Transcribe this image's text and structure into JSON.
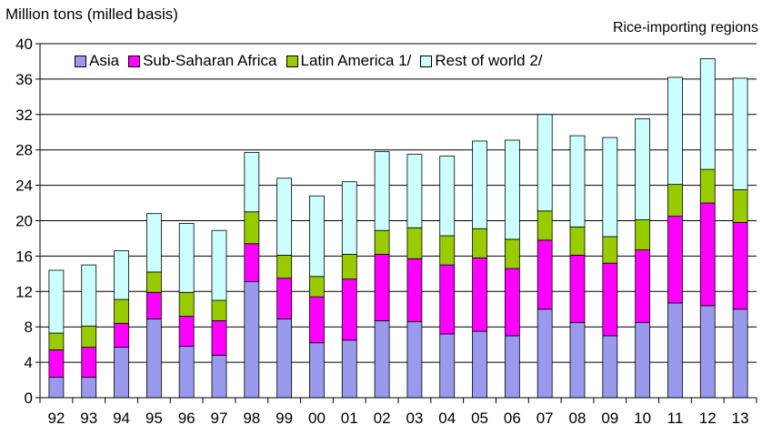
{
  "chart_data": {
    "type": "bar",
    "stacked": true,
    "title": "",
    "subtitle": "Rice-importing regions",
    "ylabel": "Million tons (milled basis)",
    "xlabel": "",
    "ylim": [
      0,
      40
    ],
    "yticks": [
      0,
      4,
      8,
      12,
      16,
      20,
      24,
      28,
      32,
      36,
      40
    ],
    "grid": true,
    "legend_position": "top-left",
    "categories": [
      "92",
      "93",
      "94",
      "95",
      "96",
      "97",
      "98",
      "99",
      "00",
      "01",
      "02",
      "03",
      "04",
      "05",
      "06",
      "07",
      "08",
      "09",
      "10",
      "11",
      "12",
      "13"
    ],
    "series": [
      {
        "name": "Asia",
        "color": "#9999ee",
        "values": [
          2.3,
          2.3,
          5.7,
          8.9,
          5.8,
          4.8,
          13.1,
          8.9,
          6.2,
          6.5,
          8.7,
          8.6,
          7.2,
          7.5,
          7.0,
          10.0,
          8.5,
          7.0,
          8.5,
          10.7,
          10.4,
          10.0
        ]
      },
      {
        "name": "Sub-Saharan Africa",
        "color": "#ff00ff",
        "values": [
          3.1,
          3.4,
          2.7,
          3.0,
          3.4,
          3.9,
          4.3,
          4.6,
          5.2,
          6.9,
          7.5,
          7.1,
          7.8,
          8.3,
          7.6,
          7.8,
          7.6,
          8.2,
          8.2,
          9.8,
          11.6,
          9.8
        ]
      },
      {
        "name": "Latin America 1/",
        "color": "#99cc00",
        "values": [
          1.9,
          2.4,
          2.7,
          2.3,
          2.7,
          2.3,
          3.6,
          2.6,
          2.3,
          2.8,
          2.7,
          3.5,
          3.3,
          3.3,
          3.3,
          3.3,
          3.2,
          3.0,
          3.4,
          3.6,
          3.8,
          3.7
        ]
      },
      {
        "name": "Rest of world 2/",
        "color": "#ccffff",
        "values": [
          7.1,
          6.9,
          5.5,
          6.6,
          7.8,
          7.9,
          6.7,
          8.7,
          9.1,
          8.2,
          8.9,
          8.3,
          9.0,
          9.9,
          11.2,
          10.9,
          10.3,
          11.2,
          11.4,
          12.1,
          12.5,
          12.6
        ]
      }
    ]
  }
}
